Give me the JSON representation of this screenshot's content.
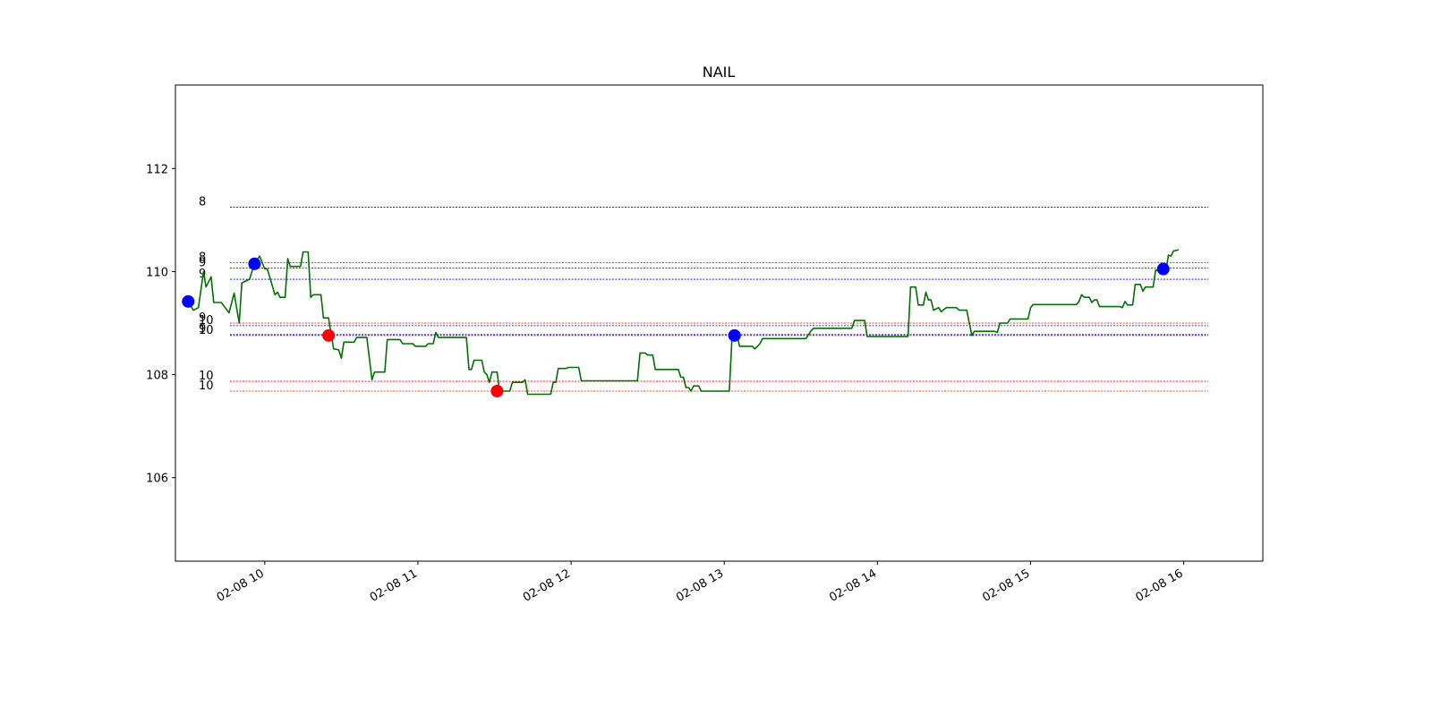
{
  "colors": {
    "price_line": "#007000",
    "buy_marker": "#0000ff",
    "sell_marker": "#ff0000",
    "level_blue": "#0000cc",
    "level_red": "#ff0000"
  },
  "chart_data": {
    "type": "line",
    "title": "NAIL",
    "xlabel": "",
    "ylabel": "",
    "x_unit": "time (2020-02-08)",
    "xlim": [
      "09:25",
      "16:31"
    ],
    "ylim": [
      104.38,
      113.62
    ],
    "grid": false,
    "x_ticks": [
      {
        "x": "10:00",
        "label": "02-08 10"
      },
      {
        "x": "11:00",
        "label": "02-08 11"
      },
      {
        "x": "12:00",
        "label": "02-08 12"
      },
      {
        "x": "13:00",
        "label": "02-08 13"
      },
      {
        "x": "14:00",
        "label": "02-08 14"
      },
      {
        "x": "15:00",
        "label": "02-08 15"
      },
      {
        "x": "16:00",
        "label": "02-08 16"
      }
    ],
    "y_ticks": [
      {
        "y": 106,
        "label": "106"
      },
      {
        "y": 108,
        "label": "108"
      },
      {
        "y": 110,
        "label": "110"
      },
      {
        "y": 112,
        "label": "112"
      }
    ],
    "levels": [
      {
        "label": "8",
        "y": 111.25,
        "color": "blue"
      },
      {
        "label": "8",
        "y": 110.17,
        "color": "red"
      },
      {
        "label": "9",
        "y": 110.07,
        "color": "blue"
      },
      {
        "label": "9",
        "y": 109.85,
        "color": "blue"
      },
      {
        "label": "9",
        "y": 109.0,
        "color": "red"
      },
      {
        "label": "10",
        "y": 108.95,
        "color": "blue"
      },
      {
        "label": "9",
        "y": 108.78,
        "color": "red"
      },
      {
        "label": "10",
        "y": 108.76,
        "color": "blue"
      },
      {
        "label": "10",
        "y": 107.87,
        "color": "red"
      },
      {
        "label": "10",
        "y": 107.68,
        "color": "red"
      }
    ],
    "series": [
      {
        "color": "green",
        "points": [
          [
            "09:30",
            109.42
          ],
          [
            "09:32",
            109.25
          ],
          [
            "09:34",
            109.3
          ],
          [
            "09:36",
            110.0
          ],
          [
            "09:37",
            109.7
          ],
          [
            "09:39",
            109.9
          ],
          [
            "09:40",
            109.4
          ],
          [
            "09:43",
            109.4
          ],
          [
            "09:46",
            109.2
          ],
          [
            "09:48",
            109.58
          ],
          [
            "09:50",
            109.0
          ],
          [
            "09:51",
            109.78
          ],
          [
            "09:54",
            109.85
          ],
          [
            "09:56",
            110.15
          ],
          [
            "09:58",
            110.3
          ],
          [
            "10:00",
            110.05
          ],
          [
            "10:01",
            110.05
          ],
          [
            "10:04",
            109.55
          ],
          [
            "10:05",
            109.6
          ],
          [
            "10:06",
            109.5
          ],
          [
            "10:08",
            109.5
          ],
          [
            "10:09",
            110.25
          ],
          [
            "10:10",
            110.1
          ],
          [
            "10:14",
            110.1
          ],
          [
            "10:15",
            110.38
          ],
          [
            "10:17",
            110.38
          ],
          [
            "10:18",
            109.5
          ],
          [
            "10:19",
            109.55
          ],
          [
            "10:22",
            109.55
          ],
          [
            "10:23",
            109.1
          ],
          [
            "10:25",
            109.1
          ],
          [
            "10:26",
            108.78
          ],
          [
            "10:27",
            108.5
          ],
          [
            "10:29",
            108.48
          ],
          [
            "10:30",
            108.32
          ],
          [
            "10:31",
            108.63
          ],
          [
            "10:35",
            108.63
          ],
          [
            "10:36",
            108.72
          ],
          [
            "10:40",
            108.72
          ],
          [
            "10:42",
            107.9
          ],
          [
            "10:43",
            108.05
          ],
          [
            "10:47",
            108.05
          ],
          [
            "10:48",
            108.68
          ],
          [
            "10:53",
            108.68
          ],
          [
            "10:54",
            108.6
          ],
          [
            "10:58",
            108.6
          ],
          [
            "10:59",
            108.55
          ],
          [
            "11:03",
            108.55
          ],
          [
            "11:04",
            108.6
          ],
          [
            "11:06",
            108.6
          ],
          [
            "11:07",
            108.82
          ],
          [
            "11:08",
            108.72
          ],
          [
            "11:19",
            108.72
          ],
          [
            "11:20",
            108.1
          ],
          [
            "11:21",
            108.1
          ],
          [
            "11:22",
            108.28
          ],
          [
            "11:25",
            108.28
          ],
          [
            "11:26",
            108.05
          ],
          [
            "11:27",
            108.0
          ],
          [
            "11:28",
            107.85
          ],
          [
            "11:29",
            108.05
          ],
          [
            "11:31",
            108.05
          ],
          [
            "11:32",
            107.68
          ],
          [
            "11:36",
            107.68
          ],
          [
            "11:37",
            107.85
          ],
          [
            "11:41",
            107.85
          ],
          [
            "11:42",
            107.9
          ],
          [
            "11:43",
            107.62
          ],
          [
            "11:52",
            107.62
          ],
          [
            "11:53",
            107.85
          ],
          [
            "11:54",
            107.85
          ],
          [
            "11:55",
            108.12
          ],
          [
            "11:58",
            108.12
          ],
          [
            "11:59",
            108.14
          ],
          [
            "12:03",
            108.14
          ],
          [
            "12:04",
            107.88
          ],
          [
            "12:26",
            107.88
          ],
          [
            "12:27",
            108.42
          ],
          [
            "12:29",
            108.42
          ],
          [
            "12:30",
            108.38
          ],
          [
            "12:32",
            108.38
          ],
          [
            "12:33",
            108.1
          ],
          [
            "12:42",
            108.1
          ],
          [
            "12:43",
            107.95
          ],
          [
            "12:44",
            107.95
          ],
          [
            "12:45",
            107.75
          ],
          [
            "12:46",
            107.75
          ],
          [
            "12:47",
            107.68
          ],
          [
            "12:48",
            107.78
          ],
          [
            "12:50",
            107.78
          ],
          [
            "12:51",
            107.68
          ],
          [
            "13:02",
            107.68
          ],
          [
            "13:03",
            108.7
          ],
          [
            "13:04",
            108.8
          ],
          [
            "13:05",
            108.78
          ],
          [
            "13:06",
            108.55
          ],
          [
            "13:11",
            108.55
          ],
          [
            "13:12",
            108.5
          ],
          [
            "13:13",
            108.55
          ],
          [
            "13:14",
            108.6
          ],
          [
            "13:15",
            108.7
          ],
          [
            "13:32",
            108.7
          ],
          [
            "13:34",
            108.85
          ],
          [
            "13:35",
            108.9
          ],
          [
            "13:50",
            108.9
          ],
          [
            "13:51",
            109.05
          ],
          [
            "13:55",
            109.05
          ],
          [
            "13:56",
            108.74
          ],
          [
            "14:12",
            108.74
          ],
          [
            "14:13",
            109.7
          ],
          [
            "14:15",
            109.7
          ],
          [
            "14:16",
            109.35
          ],
          [
            "14:18",
            109.35
          ],
          [
            "14:19",
            109.6
          ],
          [
            "14:20",
            109.45
          ],
          [
            "14:21",
            109.45
          ],
          [
            "14:22",
            109.25
          ],
          [
            "14:24",
            109.3
          ],
          [
            "14:25",
            109.22
          ],
          [
            "14:27",
            109.3
          ],
          [
            "14:31",
            109.3
          ],
          [
            "14:32",
            109.25
          ],
          [
            "14:35",
            109.25
          ],
          [
            "14:36",
            109.0
          ],
          [
            "14:37",
            108.76
          ],
          [
            "14:38",
            108.84
          ],
          [
            "14:46",
            108.84
          ],
          [
            "14:47",
            108.82
          ],
          [
            "14:48",
            109.0
          ],
          [
            "14:51",
            109.0
          ],
          [
            "14:52",
            109.08
          ],
          [
            "14:59",
            109.08
          ],
          [
            "15:00",
            109.3
          ],
          [
            "15:01",
            109.36
          ],
          [
            "15:18",
            109.36
          ],
          [
            "15:19",
            109.42
          ],
          [
            "15:20",
            109.55
          ],
          [
            "15:21",
            109.5
          ],
          [
            "15:23",
            109.5
          ],
          [
            "15:24",
            109.4
          ],
          [
            "15:25",
            109.45
          ],
          [
            "15:26",
            109.45
          ],
          [
            "15:27",
            109.32
          ],
          [
            "15:35",
            109.32
          ],
          [
            "15:36",
            109.3
          ],
          [
            "15:37",
            109.42
          ],
          [
            "15:38",
            109.35
          ],
          [
            "15:40",
            109.35
          ],
          [
            "15:41",
            109.75
          ],
          [
            "15:43",
            109.75
          ],
          [
            "15:44",
            109.62
          ],
          [
            "15:45",
            109.7
          ],
          [
            "15:48",
            109.7
          ],
          [
            "15:49",
            110.03
          ],
          [
            "15:51",
            110.0
          ],
          [
            "15:52",
            109.95
          ],
          [
            "15:53",
            110.0
          ],
          [
            "15:54",
            110.32
          ],
          [
            "15:55",
            110.3
          ],
          [
            "15:56",
            110.4
          ],
          [
            "15:58",
            110.42
          ]
        ]
      }
    ],
    "markers": [
      {
        "x": "09:30",
        "y": 109.42,
        "color": "blue"
      },
      {
        "x": "09:56",
        "y": 110.15,
        "color": "blue"
      },
      {
        "x": "10:25",
        "y": 108.76,
        "color": "red"
      },
      {
        "x": "11:31",
        "y": 107.68,
        "color": "red"
      },
      {
        "x": "13:04",
        "y": 108.76,
        "color": "blue"
      },
      {
        "x": "15:52",
        "y": 110.05,
        "color": "blue"
      }
    ]
  }
}
